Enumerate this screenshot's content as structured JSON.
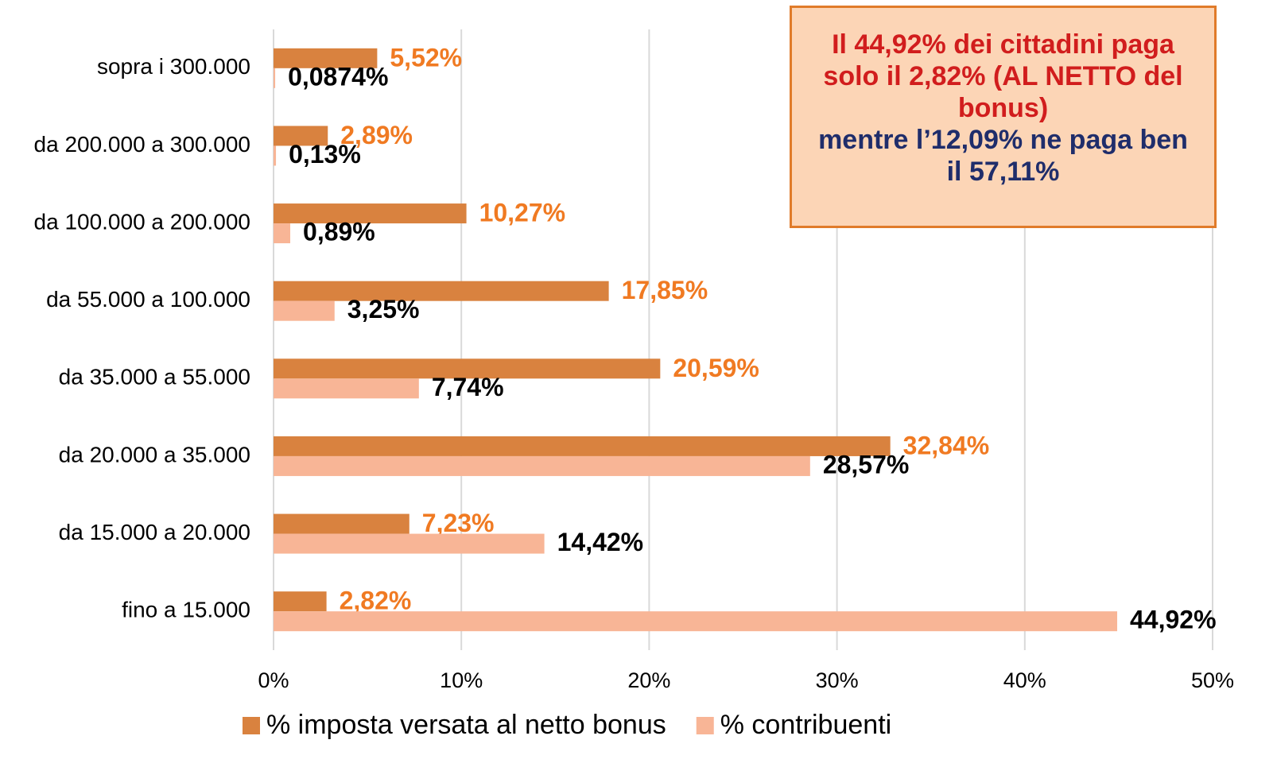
{
  "chart_data": {
    "type": "bar",
    "orientation": "horizontal",
    "categories": [
      "sopra i 300.000",
      "da 200.000 a 300.000",
      "da 100.000 a 200.000",
      "da 55.000 a 100.000",
      "da 35.000 a 55.000",
      "da 20.000 a 35.000",
      "da 15.000 a 20.000",
      "fino a 15.000"
    ],
    "series": [
      {
        "name": "% imposta versata al netto bonus",
        "color": "#d9823f",
        "label_color": "#f07a22",
        "values": [
          5.52,
          2.89,
          10.27,
          17.85,
          20.59,
          32.84,
          7.23,
          2.82
        ],
        "value_labels": [
          "5,52%",
          "2,89%",
          "10,27%",
          "17,85%",
          "20,59%",
          "32,84%",
          "7,23%",
          "2,82%"
        ]
      },
      {
        "name": "% contribuenti",
        "color": "#f8b596",
        "label_color": "#000000",
        "values": [
          0.0874,
          0.13,
          0.89,
          3.25,
          7.74,
          28.57,
          14.42,
          44.92
        ],
        "value_labels": [
          "0,0874%",
          "0,13%",
          "0,89%",
          "3,25%",
          "7,74%",
          "28,57%",
          "14,42%",
          "44,92%"
        ]
      }
    ],
    "xlim": [
      0,
      50
    ],
    "xticks": [
      {
        "value": 0,
        "label": "0%"
      },
      {
        "value": 10,
        "label": "10%"
      },
      {
        "value": 20,
        "label": "20%"
      },
      {
        "value": 30,
        "label": "30%"
      },
      {
        "value": 40,
        "label": "40%"
      },
      {
        "value": 50,
        "label": "50%"
      }
    ],
    "grid": true,
    "legend": "bottom",
    "annotation": {
      "text_red": "Il 44,92% dei cittadini paga solo il 2,82% (AL NETTO del bonus)",
      "text_blue": "mentre l’12,09% ne paga ben il 57,11%"
    }
  }
}
